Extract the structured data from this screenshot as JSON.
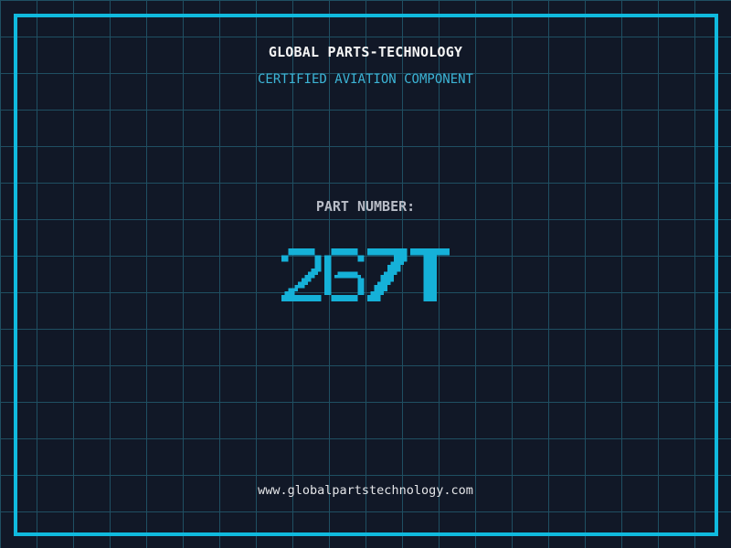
{
  "page": {
    "background_color": "#111827",
    "grid_color": "#1f4f62",
    "frame_color": "#10bade"
  },
  "header": {
    "title": "GLOBAL PARTS-TECHNOLOGY",
    "title_color": "#f5f5f5",
    "subtitle": "CERTIFIED AVIATION COMPONENT",
    "subtitle_color": "#3cb4d6"
  },
  "part": {
    "label": "PART NUMBER:",
    "label_color": "#b9bdc7",
    "number": "267T",
    "number_color": "#15b1d8"
  },
  "footer": {
    "url": "www.globalpartstechnology.com",
    "url_color": "#e4e5e8"
  }
}
